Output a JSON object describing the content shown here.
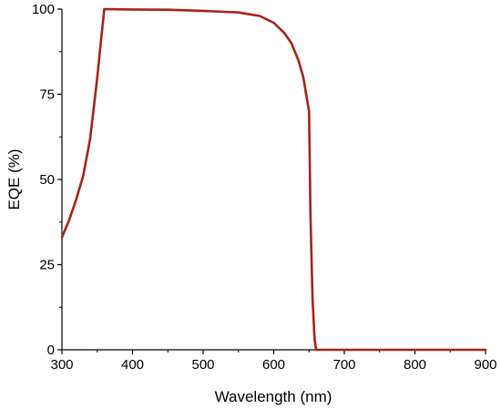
{
  "chart_data": {
    "type": "line",
    "title": "",
    "xlabel": "Wavelength (nm)",
    "ylabel": "EQE (%)",
    "xlim": [
      300,
      900
    ],
    "ylim": [
      0,
      100
    ],
    "xticks": [
      300,
      400,
      500,
      600,
      700,
      800,
      900
    ],
    "yticks": [
      0,
      25,
      50,
      75,
      100
    ],
    "grid": false,
    "legend": "none",
    "line_color": "#a52418",
    "series": [
      {
        "x": [
          300,
          310,
          320,
          330,
          340,
          350,
          355,
          360,
          400,
          450,
          500,
          550,
          580,
          600,
          615,
          625,
          635,
          642,
          646,
          650,
          652,
          655,
          658,
          660,
          700,
          750,
          800,
          850,
          900
        ],
        "y": [
          33,
          38,
          44,
          51,
          62,
          80,
          90,
          100,
          99.9,
          99.8,
          99.5,
          99,
          98,
          96,
          93,
          90,
          85,
          80,
          75,
          70,
          40,
          15,
          3,
          0,
          0,
          0,
          0,
          0,
          0
        ]
      }
    ]
  }
}
